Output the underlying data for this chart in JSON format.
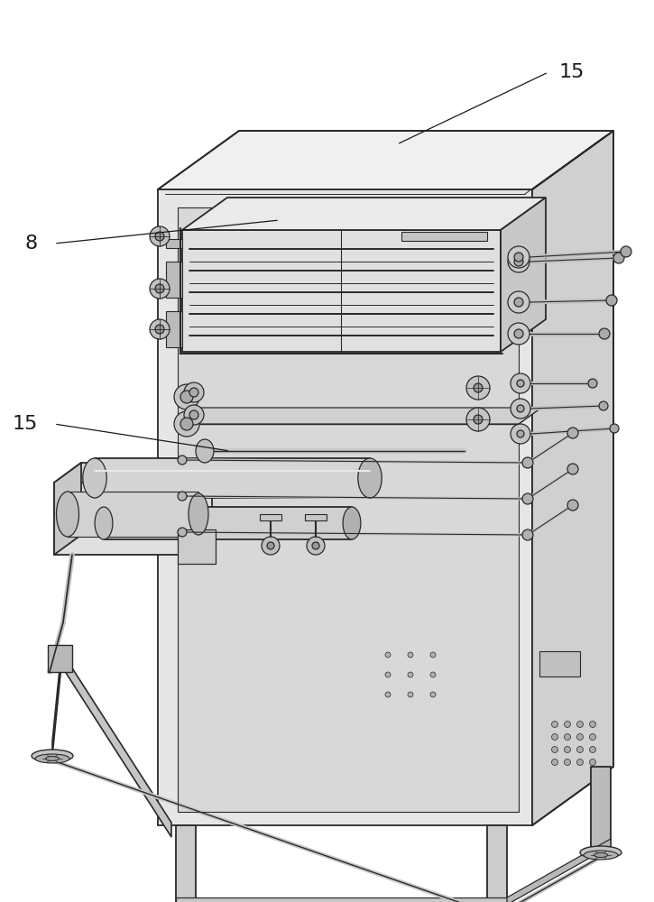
{
  "bg_color": "#ffffff",
  "lc": "#2a2a2a",
  "fill_front": "#e6e6e6",
  "fill_right": "#d0d0d0",
  "fill_top": "#f0f0f0",
  "fill_inner": "#dedede",
  "fill_box": "#e2e2e2",
  "fill_box_top": "#ececec",
  "fill_box_right": "#c8c8c8",
  "label_8": "8",
  "label_15a": "15",
  "label_15b": "15",
  "figsize": [
    7.25,
    10.0
  ],
  "dpi": 100
}
